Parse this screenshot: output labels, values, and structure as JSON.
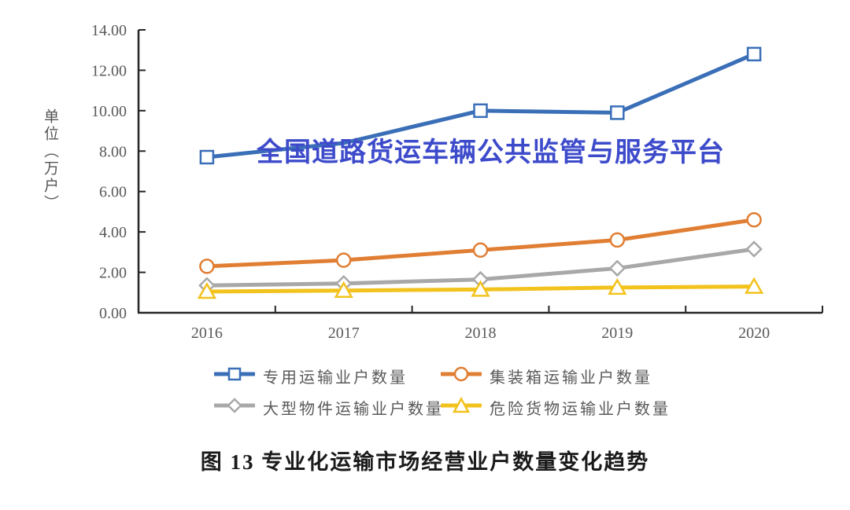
{
  "watermark": {
    "text": "全国道路货运车辆公共监管与服务平台",
    "color": "#3D4BCB"
  },
  "caption": {
    "text": "图 13 专业化运输市场经营业户数量变化趋势"
  },
  "chart_data": {
    "type": "line",
    "title": "",
    "xlabel": "",
    "ylabel": "单位（万户）",
    "categories": [
      "2016",
      "2017",
      "2018",
      "2019",
      "2020"
    ],
    "y_ticks": [
      "14.00",
      "12.00",
      "10.00",
      "8.00",
      "6.00",
      "4.00",
      "2.00",
      "0.00"
    ],
    "ylim": [
      0,
      14
    ],
    "y_step": 2,
    "grid": false,
    "legend_position": "bottom",
    "axis_color": "#262626",
    "tick_label_color": "#595959",
    "series": [
      {
        "name": "专用运输业户数量",
        "color": "#3A6FB7",
        "marker": "square",
        "values": [
          7.7,
          8.4,
          10.0,
          9.9,
          12.8
        ],
        "hidden_marker_indices": [
          1
        ]
      },
      {
        "name": "集装箱运输业户数量",
        "color": "#E07E33",
        "marker": "circle",
        "values": [
          2.3,
          2.6,
          3.1,
          3.6,
          4.6
        ],
        "hidden_marker_indices": []
      },
      {
        "name": "大型物件运输业户数量",
        "color": "#A8A8A8",
        "marker": "diamond",
        "values": [
          1.35,
          1.45,
          1.65,
          2.2,
          3.15
        ],
        "hidden_marker_indices": []
      },
      {
        "name": "危险货物运输业户数量",
        "color": "#F2C21D",
        "marker": "triangle",
        "values": [
          1.05,
          1.1,
          1.15,
          1.25,
          1.3
        ],
        "hidden_marker_indices": []
      }
    ]
  }
}
